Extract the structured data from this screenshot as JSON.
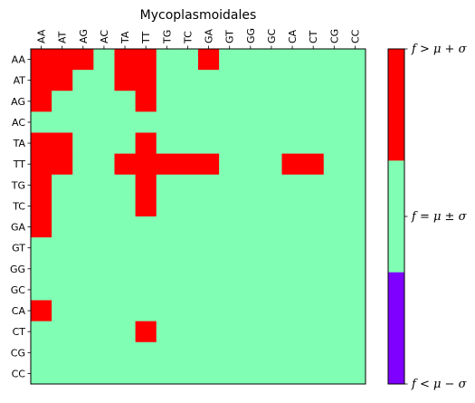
{
  "chart_data": {
    "type": "heatmap",
    "title": "Mycoplasmoidales",
    "x_labels": [
      "AA",
      "AT",
      "AG",
      "AC",
      "TA",
      "TT",
      "TG",
      "TC",
      "GA",
      "GT",
      "GG",
      "GC",
      "CA",
      "CT",
      "CG",
      "CC"
    ],
    "y_labels": [
      "AA",
      "AT",
      "AG",
      "AC",
      "TA",
      "TT",
      "TG",
      "TC",
      "GA",
      "GT",
      "GG",
      "GC",
      "CA",
      "CT",
      "CG",
      "CC"
    ],
    "x_axis_position": "top",
    "levels": [
      {
        "code": -1,
        "label": "f < μ − σ",
        "color": "#8000ff"
      },
      {
        "code": 0,
        "label": "f = μ ± σ",
        "color": "#80ffb4"
      },
      {
        "code": 1,
        "label": "f > μ + σ",
        "color": "#ff0000"
      }
    ],
    "values": [
      [
        1,
        1,
        1,
        0,
        1,
        1,
        0,
        0,
        1,
        0,
        0,
        0,
        0,
        0,
        0,
        0
      ],
      [
        1,
        1,
        0,
        0,
        1,
        1,
        0,
        0,
        0,
        0,
        0,
        0,
        0,
        0,
        0,
        0
      ],
      [
        1,
        0,
        0,
        0,
        0,
        1,
        0,
        0,
        0,
        0,
        0,
        0,
        0,
        0,
        0,
        0
      ],
      [
        0,
        0,
        0,
        0,
        0,
        0,
        0,
        0,
        0,
        0,
        0,
        0,
        0,
        0,
        0,
        0
      ],
      [
        1,
        1,
        0,
        0,
        0,
        1,
        0,
        0,
        0,
        0,
        0,
        0,
        0,
        0,
        0,
        0
      ],
      [
        1,
        1,
        0,
        0,
        1,
        1,
        1,
        1,
        1,
        0,
        0,
        0,
        1,
        1,
        0,
        0
      ],
      [
        1,
        0,
        0,
        0,
        0,
        1,
        0,
        0,
        0,
        0,
        0,
        0,
        0,
        0,
        0,
        0
      ],
      [
        1,
        0,
        0,
        0,
        0,
        1,
        0,
        0,
        0,
        0,
        0,
        0,
        0,
        0,
        0,
        0
      ],
      [
        1,
        0,
        0,
        0,
        0,
        0,
        0,
        0,
        0,
        0,
        0,
        0,
        0,
        0,
        0,
        0
      ],
      [
        0,
        0,
        0,
        0,
        0,
        0,
        0,
        0,
        0,
        0,
        0,
        0,
        0,
        0,
        0,
        0
      ],
      [
        0,
        0,
        0,
        0,
        0,
        0,
        0,
        0,
        0,
        0,
        0,
        0,
        0,
        0,
        0,
        0
      ],
      [
        0,
        0,
        0,
        0,
        0,
        0,
        0,
        0,
        0,
        0,
        0,
        0,
        0,
        0,
        0,
        0
      ],
      [
        1,
        0,
        0,
        0,
        0,
        0,
        0,
        0,
        0,
        0,
        0,
        0,
        0,
        0,
        0,
        0
      ],
      [
        0,
        0,
        0,
        0,
        0,
        1,
        0,
        0,
        0,
        0,
        0,
        0,
        0,
        0,
        0,
        0
      ],
      [
        0,
        0,
        0,
        0,
        0,
        0,
        0,
        0,
        0,
        0,
        0,
        0,
        0,
        0,
        0,
        0
      ],
      [
        0,
        0,
        0,
        0,
        0,
        0,
        0,
        0,
        0,
        0,
        0,
        0,
        0,
        0,
        0,
        0
      ]
    ],
    "colorbar": {
      "position": "right",
      "tick_labels": [
        "f > μ + σ",
        "f = μ ± σ",
        "f < μ − σ"
      ]
    }
  }
}
